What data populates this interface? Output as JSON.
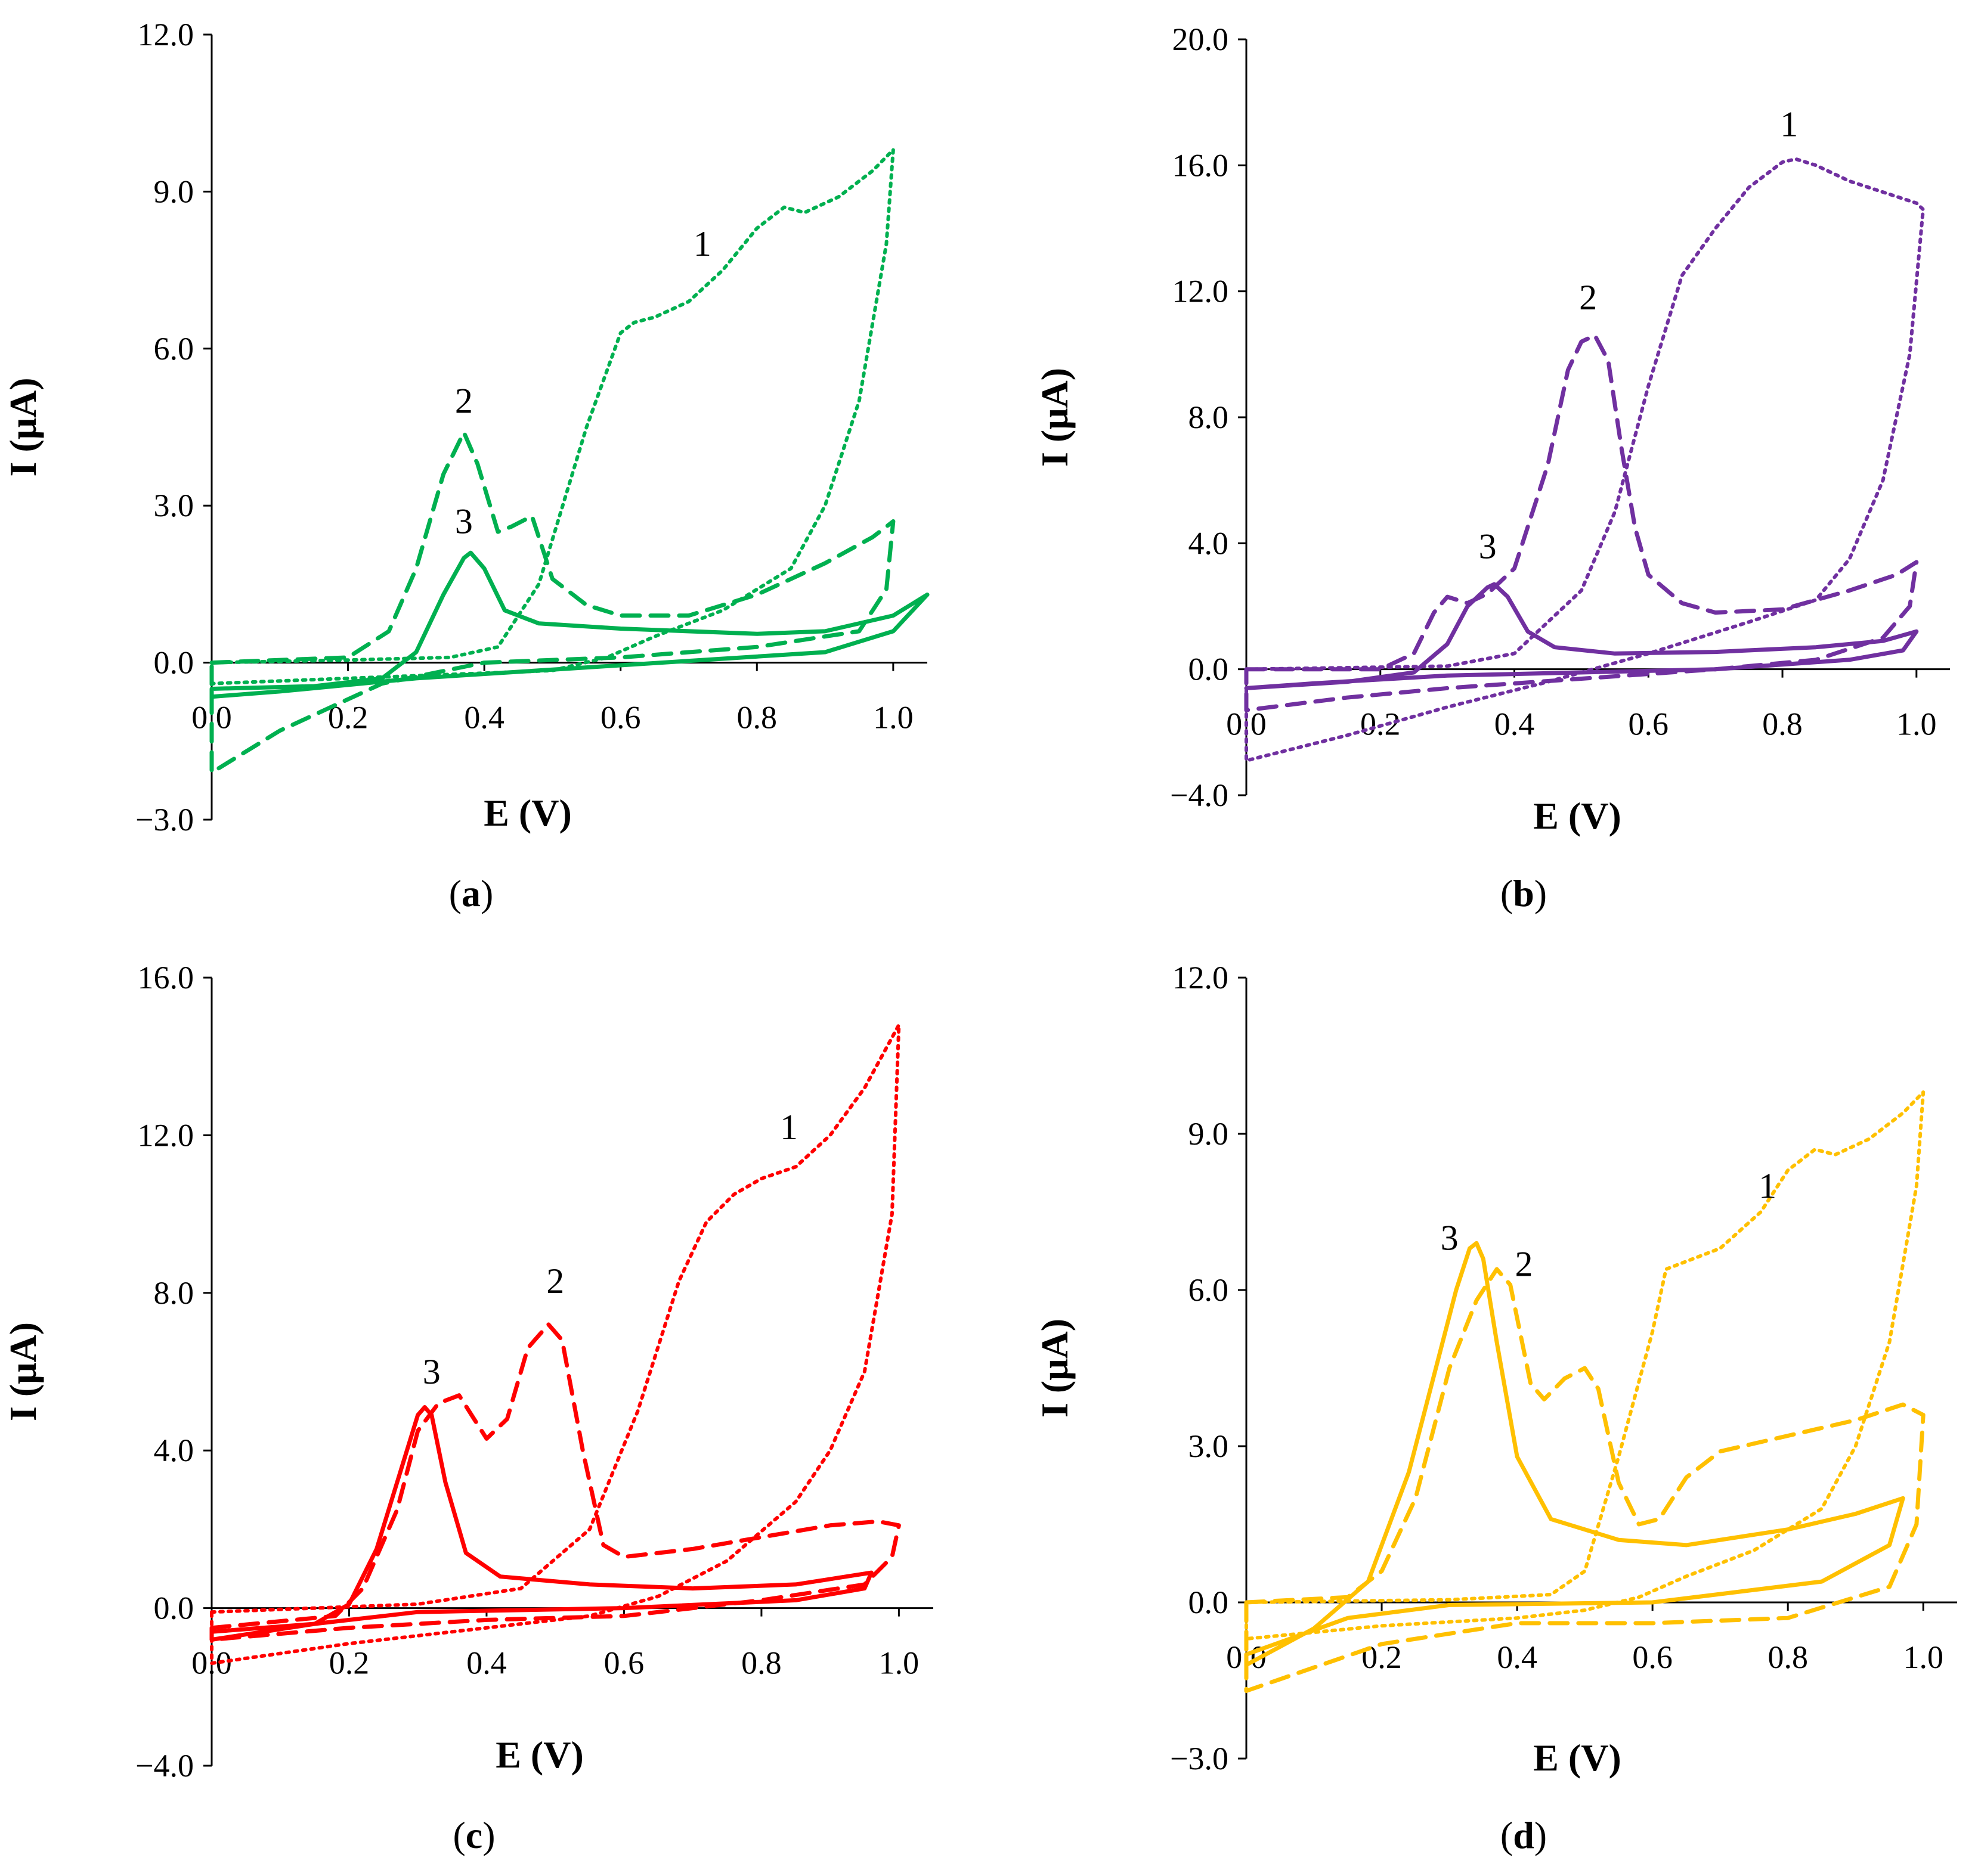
{
  "chart_data": [
    {
      "type": "line",
      "panel": "a",
      "panel_label": "a",
      "color": "#00b050",
      "xlabel": "E (V)",
      "ylabel": "I (μA)",
      "xlim": [
        0.0,
        1.05
      ],
      "ylim": [
        -3.0,
        12.0
      ],
      "xticks": [
        "0.0",
        "0.2",
        "0.4",
        "0.6",
        "0.8",
        "1.0"
      ],
      "yticks": [
        "−3.0",
        "0.0",
        "3.0",
        "6.0",
        "9.0",
        "12.0"
      ],
      "xtick_values": [
        0.0,
        0.2,
        0.4,
        0.6,
        0.8,
        1.0
      ],
      "ytick_values": [
        -3.0,
        0.0,
        3.0,
        6.0,
        9.0,
        12.0
      ],
      "annotations": [
        {
          "text": "1",
          "x": 0.72,
          "y": 8.0
        },
        {
          "text": "2",
          "x": 0.37,
          "y": 5.0
        },
        {
          "text": "3",
          "x": 0.37,
          "y": 2.7
        }
      ],
      "series": [
        {
          "name": "1",
          "style": "dotted",
          "x": [
            0.0,
            0.2,
            0.35,
            0.42,
            0.48,
            0.55,
            0.6,
            0.62,
            0.65,
            0.7,
            0.75,
            0.8,
            0.84,
            0.87,
            0.92,
            0.97,
            1.0,
            0.99,
            0.95,
            0.9,
            0.85,
            0.75,
            0.65,
            0.58,
            0.5,
            0.4,
            0.2,
            0.0
          ],
          "y": [
            0.0,
            0.05,
            0.1,
            0.3,
            1.5,
            4.5,
            6.3,
            6.5,
            6.6,
            6.9,
            7.5,
            8.3,
            8.7,
            8.6,
            8.9,
            9.4,
            9.8,
            8.0,
            5.0,
            3.0,
            1.8,
            1.0,
            0.5,
            0.1,
            -0.15,
            -0.2,
            -0.3,
            -0.4
          ]
        },
        {
          "name": "2",
          "style": "dashed",
          "x": [
            0.0,
            0.2,
            0.26,
            0.3,
            0.34,
            0.37,
            0.39,
            0.42,
            0.44,
            0.47,
            0.5,
            0.55,
            0.6,
            0.7,
            0.8,
            0.9,
            0.97,
            1.0,
            0.99,
            0.95,
            0.8,
            0.6,
            0.4,
            0.25,
            0.1,
            0.0
          ],
          "y": [
            0.0,
            0.1,
            0.6,
            1.8,
            3.6,
            4.4,
            3.8,
            2.5,
            2.6,
            2.8,
            1.6,
            1.1,
            0.9,
            0.9,
            1.3,
            1.9,
            2.4,
            2.7,
            1.4,
            0.6,
            0.3,
            0.1,
            0.0,
            -0.4,
            -1.3,
            -2.1
          ]
        },
        {
          "name": "3",
          "style": "solid",
          "x": [
            0.0,
            0.15,
            0.25,
            0.3,
            0.34,
            0.37,
            0.38,
            0.4,
            0.43,
            0.48,
            0.6,
            0.8,
            0.9,
            1.0,
            1.05,
            1.0,
            0.9,
            0.6,
            0.3,
            0.1,
            0.0
          ],
          "y": [
            -0.5,
            -0.45,
            -0.3,
            0.2,
            1.3,
            2.0,
            2.1,
            1.8,
            1.0,
            0.75,
            0.65,
            0.55,
            0.6,
            0.9,
            1.3,
            0.6,
            0.2,
            -0.05,
            -0.3,
            -0.55,
            -0.65
          ]
        }
      ]
    },
    {
      "type": "line",
      "panel": "b",
      "panel_label": "b",
      "color": "#7030a0",
      "xlabel": "E (V)",
      "ylabel": "I (μA)",
      "xlim": [
        0.0,
        1.05
      ],
      "ylim": [
        -4.0,
        20.0
      ],
      "xticks": [
        "0.0",
        "0.2",
        "0.4",
        "0.6",
        "0.8",
        "1.0"
      ],
      "yticks": [
        "−4.0",
        "0.0",
        "4.0",
        "8.0",
        "12.0",
        "16.0",
        "20.0"
      ],
      "xtick_values": [
        0.0,
        0.2,
        0.4,
        0.6,
        0.8,
        1.0
      ],
      "ytick_values": [
        -4.0,
        0.0,
        4.0,
        8.0,
        12.0,
        16.0,
        20.0
      ],
      "annotations": [
        {
          "text": "1",
          "x": 0.81,
          "y": 17.3
        },
        {
          "text": "2",
          "x": 0.51,
          "y": 11.8
        },
        {
          "text": "3",
          "x": 0.36,
          "y": 3.9
        }
      ],
      "series": [
        {
          "name": "1",
          "style": "dotted",
          "x": [
            0.0,
            0.3,
            0.4,
            0.5,
            0.55,
            0.6,
            0.65,
            0.7,
            0.75,
            0.8,
            0.82,
            0.85,
            0.9,
            1.0,
            1.01,
            0.99,
            0.95,
            0.9,
            0.85,
            0.75,
            0.6,
            0.45,
            0.3,
            0.15,
            0.0
          ],
          "y": [
            0.0,
            0.1,
            0.5,
            2.5,
            5.0,
            9.0,
            12.5,
            14.0,
            15.3,
            16.1,
            16.2,
            16.0,
            15.5,
            14.8,
            14.6,
            10.0,
            6.0,
            3.5,
            2.2,
            1.5,
            0.5,
            -0.4,
            -1.2,
            -2.1,
            -2.9
          ]
        },
        {
          "name": "2",
          "style": "dashed",
          "x": [
            0.0,
            0.2,
            0.25,
            0.28,
            0.3,
            0.33,
            0.36,
            0.4,
            0.45,
            0.48,
            0.5,
            0.52,
            0.54,
            0.56,
            0.58,
            0.6,
            0.65,
            0.7,
            0.8,
            0.9,
            0.97,
            1.0,
            0.99,
            0.95,
            0.85,
            0.7,
            0.5,
            0.3,
            0.15,
            0.0
          ],
          "y": [
            0.0,
            0.0,
            0.5,
            1.8,
            2.3,
            2.1,
            2.4,
            3.2,
            6.5,
            9.5,
            10.4,
            10.6,
            9.8,
            7.0,
            4.5,
            3.0,
            2.1,
            1.8,
            1.9,
            2.5,
            3.0,
            3.4,
            2.0,
            1.0,
            0.3,
            0.0,
            -0.3,
            -0.6,
            -0.9,
            -1.3
          ]
        },
        {
          "name": "3",
          "style": "solid",
          "x": [
            0.0,
            0.15,
            0.25,
            0.3,
            0.33,
            0.36,
            0.37,
            0.39,
            0.42,
            0.46,
            0.55,
            0.7,
            0.85,
            0.95,
            1.0,
            0.98,
            0.9,
            0.7,
            0.5,
            0.3,
            0.1,
            0.0
          ],
          "y": [
            -0.6,
            -0.4,
            -0.1,
            0.8,
            2.0,
            2.6,
            2.7,
            2.3,
            1.2,
            0.7,
            0.5,
            0.55,
            0.7,
            0.9,
            1.2,
            0.6,
            0.3,
            0.0,
            -0.1,
            -0.2,
            -0.45,
            -0.6
          ]
        }
      ]
    },
    {
      "type": "line",
      "panel": "c",
      "panel_label": "c",
      "color": "#ff0000",
      "xlabel": "E (V)",
      "ylabel": "I (μA)",
      "xlim": [
        0.0,
        1.05
      ],
      "ylim": [
        -4.0,
        16.0
      ],
      "xticks": [
        "0.0",
        "0.2",
        "0.4",
        "0.6",
        "0.8",
        "1.0"
      ],
      "yticks": [
        "−4.0",
        "0.0",
        "4.0",
        "8.0",
        "12.0",
        "16.0"
      ],
      "xtick_values": [
        0.0,
        0.2,
        0.4,
        0.6,
        0.8,
        1.0
      ],
      "ytick_values": [
        -4.0,
        0.0,
        4.0,
        8.0,
        12.0,
        16.0
      ],
      "annotations": [
        {
          "text": "1",
          "x": 0.84,
          "y": 12.2
        },
        {
          "text": "2",
          "x": 0.5,
          "y": 8.3
        },
        {
          "text": "3",
          "x": 0.32,
          "y": 6.0
        }
      ],
      "series": [
        {
          "name": "1",
          "style": "dotted",
          "x": [
            0.0,
            0.3,
            0.45,
            0.55,
            0.62,
            0.68,
            0.72,
            0.76,
            0.8,
            0.85,
            0.9,
            0.95,
            1.0,
            0.99,
            0.95,
            0.9,
            0.85,
            0.75,
            0.65,
            0.55,
            0.4,
            0.2,
            0.0
          ],
          "y": [
            -0.1,
            0.1,
            0.5,
            2.0,
            5.0,
            8.3,
            9.8,
            10.5,
            10.9,
            11.2,
            12.0,
            13.2,
            14.8,
            10.0,
            6.0,
            4.0,
            2.7,
            1.2,
            0.3,
            -0.2,
            -0.5,
            -0.9,
            -1.4
          ]
        },
        {
          "name": "2",
          "style": "dashed",
          "x": [
            0.0,
            0.18,
            0.22,
            0.27,
            0.3,
            0.33,
            0.36,
            0.4,
            0.43,
            0.46,
            0.49,
            0.51,
            0.54,
            0.57,
            0.6,
            0.7,
            0.8,
            0.9,
            0.97,
            1.0,
            0.99,
            0.95,
            0.8,
            0.6,
            0.4,
            0.2,
            0.0
          ],
          "y": [
            -0.5,
            -0.2,
            0.5,
            2.5,
            4.5,
            5.2,
            5.4,
            4.3,
            4.8,
            6.6,
            7.2,
            6.8,
            4.0,
            1.6,
            1.3,
            1.5,
            1.8,
            2.1,
            2.2,
            2.1,
            1.3,
            0.6,
            0.2,
            -0.2,
            -0.3,
            -0.5,
            -0.8
          ]
        },
        {
          "name": "3",
          "style": "solid",
          "x": [
            0.0,
            0.15,
            0.2,
            0.24,
            0.27,
            0.3,
            0.31,
            0.32,
            0.34,
            0.37,
            0.42,
            0.55,
            0.7,
            0.85,
            0.96,
            0.95,
            0.85,
            0.6,
            0.3,
            0.15,
            0.0
          ],
          "y": [
            -0.8,
            -0.4,
            0.1,
            1.5,
            3.2,
            4.9,
            5.1,
            4.9,
            3.2,
            1.4,
            0.8,
            0.6,
            0.5,
            0.6,
            0.9,
            0.5,
            0.2,
            0.0,
            -0.1,
            -0.4,
            -0.6
          ]
        }
      ]
    },
    {
      "type": "line",
      "panel": "d",
      "panel_label": "d",
      "color": "#ffc000",
      "xlabel": "E (V)",
      "ylabel": "I (μA)",
      "xlim": [
        0.0,
        1.05
      ],
      "ylim": [
        -3.0,
        12.0
      ],
      "xticks": [
        "0.0",
        "0.2",
        "0.4",
        "0.6",
        "0.8",
        "1.0"
      ],
      "yticks": [
        "−3.0",
        "0.0",
        "3.0",
        "6.0",
        "9.0",
        "12.0"
      ],
      "xtick_values": [
        0.0,
        0.2,
        0.4,
        0.6,
        0.8,
        1.0
      ],
      "ytick_values": [
        -3.0,
        0.0,
        3.0,
        6.0,
        9.0,
        12.0
      ],
      "annotations": [
        {
          "text": "1",
          "x": 0.77,
          "y": 8.0
        },
        {
          "text": "2",
          "x": 0.41,
          "y": 6.5
        },
        {
          "text": "3",
          "x": 0.3,
          "y": 7.0
        }
      ],
      "series": [
        {
          "name": "1",
          "style": "dotted",
          "x": [
            0.0,
            0.3,
            0.45,
            0.5,
            0.55,
            0.6,
            0.62,
            0.66,
            0.7,
            0.76,
            0.8,
            0.84,
            0.87,
            0.92,
            0.97,
            1.0,
            0.99,
            0.95,
            0.9,
            0.85,
            0.75,
            0.65,
            0.58,
            0.5,
            0.4,
            0.2,
            0.0
          ],
          "y": [
            0.0,
            0.05,
            0.15,
            0.6,
            2.8,
            5.2,
            6.4,
            6.6,
            6.8,
            7.5,
            8.3,
            8.7,
            8.6,
            8.9,
            9.4,
            9.8,
            8.0,
            5.0,
            3.0,
            1.8,
            1.0,
            0.5,
            0.1,
            -0.15,
            -0.3,
            -0.45,
            -0.7
          ]
        },
        {
          "name": "2",
          "style": "dashed",
          "x": [
            0.0,
            0.15,
            0.2,
            0.25,
            0.3,
            0.34,
            0.37,
            0.39,
            0.42,
            0.44,
            0.47,
            0.5,
            0.52,
            0.55,
            0.58,
            0.61,
            0.65,
            0.7,
            0.8,
            0.9,
            0.97,
            1.0,
            0.99,
            0.95,
            0.8,
            0.6,
            0.4,
            0.2,
            0.0
          ],
          "y": [
            0.0,
            0.1,
            0.6,
            2.0,
            4.5,
            5.8,
            6.4,
            6.1,
            4.2,
            3.9,
            4.3,
            4.5,
            4.1,
            2.3,
            1.5,
            1.6,
            2.4,
            2.9,
            3.2,
            3.5,
            3.8,
            3.6,
            1.5,
            0.3,
            -0.3,
            -0.4,
            -0.4,
            -0.8,
            -1.7
          ]
        },
        {
          "name": "3",
          "style": "solid",
          "x": [
            0.0,
            0.1,
            0.18,
            0.24,
            0.28,
            0.31,
            0.33,
            0.34,
            0.35,
            0.37,
            0.4,
            0.45,
            0.55,
            0.65,
            0.8,
            0.9,
            0.97,
            0.95,
            0.85,
            0.6,
            0.3,
            0.15,
            0.0
          ],
          "y": [
            -1.2,
            -0.5,
            0.4,
            2.5,
            4.5,
            6.0,
            6.8,
            6.9,
            6.6,
            5.0,
            2.8,
            1.6,
            1.2,
            1.1,
            1.4,
            1.7,
            2.0,
            1.1,
            0.4,
            0.0,
            -0.05,
            -0.3,
            -1.0
          ]
        }
      ]
    }
  ]
}
